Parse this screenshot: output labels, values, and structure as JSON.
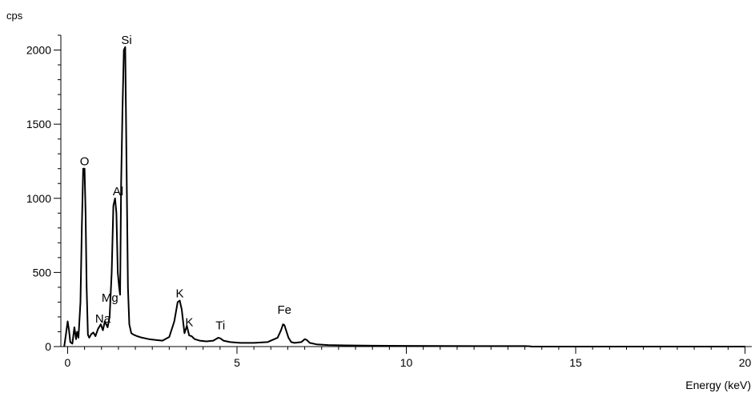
{
  "chart_data": {
    "type": "line",
    "title": "",
    "xlabel": "Energy (keV)",
    "ylabel": "cps",
    "xlim": [
      -0.2,
      20.2
    ],
    "ylim": [
      0,
      2100
    ],
    "x_ticks": [
      0,
      5,
      10,
      15,
      20
    ],
    "x_tick_labels": [
      "0",
      "5",
      "10",
      "15",
      "20"
    ],
    "x_minor_step": 0.5,
    "y_ticks": [
      0,
      500,
      1000,
      1500,
      2000
    ],
    "y_tick_labels": [
      "0",
      "500",
      "1000",
      "1500",
      "2000"
    ],
    "y_minor_step": 100,
    "grid": false,
    "legend": "none",
    "series": [
      {
        "color": "#000000",
        "x": [
          -0.1,
          -0.05,
          0.0,
          0.04,
          0.08,
          0.14,
          0.2,
          0.25,
          0.28,
          0.32,
          0.38,
          0.42,
          0.46,
          0.5,
          0.53,
          0.56,
          0.6,
          0.64,
          0.7,
          0.76,
          0.82,
          0.9,
          0.98,
          1.04,
          1.1,
          1.18,
          1.24,
          1.3,
          1.35,
          1.4,
          1.44,
          1.48,
          1.52,
          1.55,
          1.58,
          1.62,
          1.66,
          1.7,
          1.74,
          1.78,
          1.82,
          1.88,
          1.95,
          2.05,
          2.2,
          2.4,
          2.6,
          2.8,
          3.0,
          3.15,
          3.25,
          3.31,
          3.37,
          3.45,
          3.52,
          3.59,
          3.66,
          3.75,
          3.9,
          4.1,
          4.3,
          4.45,
          4.51,
          4.6,
          4.8,
          5.1,
          5.5,
          5.9,
          6.2,
          6.3,
          6.36,
          6.4,
          6.45,
          6.52,
          6.6,
          6.7,
          6.9,
          7.0,
          7.06,
          7.15,
          7.35,
          7.7,
          8.2,
          9.0,
          10.0,
          11.0,
          12.0,
          13.0,
          13.5,
          13.65,
          13.7,
          14.5,
          16.0,
          18.0,
          20.0
        ],
        "y": [
          0,
          80,
          170,
          110,
          30,
          20,
          130,
          50,
          100,
          60,
          300,
          800,
          1200,
          1200,
          900,
          400,
          80,
          60,
          85,
          95,
          70,
          120,
          150,
          110,
          170,
          130,
          200,
          500,
          950,
          1000,
          900,
          500,
          400,
          350,
          1100,
          1600,
          2000,
          2020,
          1200,
          400,
          150,
          90,
          80,
          70,
          60,
          50,
          45,
          40,
          65,
          170,
          300,
          310,
          250,
          90,
          140,
          75,
          70,
          50,
          40,
          35,
          40,
          60,
          55,
          40,
          30,
          25,
          25,
          30,
          60,
          110,
          150,
          145,
          110,
          60,
          30,
          25,
          30,
          50,
          45,
          25,
          15,
          10,
          8,
          6,
          5,
          4,
          3,
          3,
          3,
          2,
          0,
          0,
          0,
          0,
          0
        ]
      }
    ],
    "annotations": [
      {
        "text": "Si",
        "x": 1.74,
        "y": 2020
      },
      {
        "text": "O",
        "x": 0.5,
        "y": 1200
      },
      {
        "text": "Al",
        "x": 1.49,
        "y": 1000
      },
      {
        "text": "Mg",
        "x": 1.25,
        "y": 280
      },
      {
        "text": "Na",
        "x": 1.04,
        "y": 140
      },
      {
        "text": "K",
        "x": 3.31,
        "y": 310
      },
      {
        "text": "K",
        "x": 3.59,
        "y": 115
      },
      {
        "text": "Ti",
        "x": 4.51,
        "y": 95
      },
      {
        "text": "Fe",
        "x": 6.4,
        "y": 200
      }
    ]
  }
}
